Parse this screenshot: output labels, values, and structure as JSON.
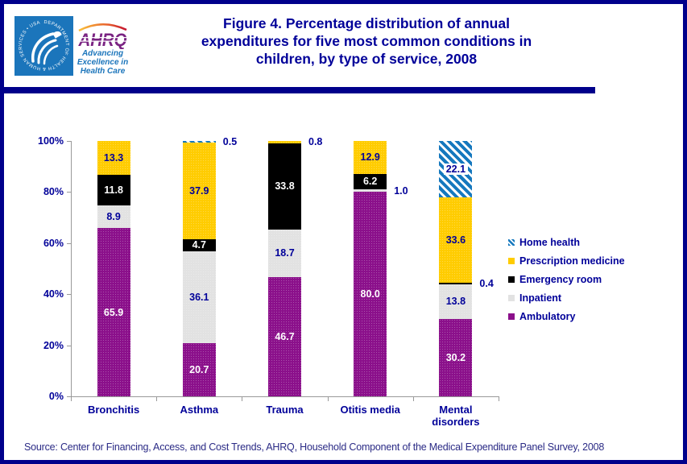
{
  "header": {
    "title_lines": [
      "Figure 4. Percentage distribution of annual",
      "expenditures for five most common conditions in",
      "children, by type of service, 2008"
    ]
  },
  "logo": {
    "hhs_circle_text": "DEPARTMENT OF HEALTH & HUMAN SERVICES • USA",
    "ahrq": "AHRQ",
    "tagline_lines": [
      "Advancing",
      "Excellence in",
      "Health Care"
    ]
  },
  "chart_data": {
    "type": "stacked-bar",
    "title": "Figure 4. Percentage distribution of annual expenditures for five most common conditions in children, by type of service, 2008",
    "categories": [
      "Bronchitis",
      "Asthma",
      "Trauma",
      "Otitis media",
      "Mental disorders"
    ],
    "series": [
      {
        "name": "Ambulatory",
        "color": "#8B108B",
        "label_color": "#FFFFFF",
        "values": [
          65.9,
          20.7,
          46.7,
          80.0,
          30.2
        ]
      },
      {
        "name": "Inpatient",
        "color": "#E2E2E2",
        "label_color": "#000099",
        "values": [
          8.9,
          36.1,
          18.7,
          1.0,
          13.8
        ]
      },
      {
        "name": "Emergency room",
        "color": "#000000",
        "label_color": "#FFFFFF",
        "values": [
          11.8,
          4.7,
          33.8,
          6.2,
          0.4
        ]
      },
      {
        "name": "Prescription medicine",
        "color": "#FFCC00",
        "label_color": "#000099",
        "values": [
          13.3,
          37.9,
          0.8,
          12.9,
          33.6
        ]
      },
      {
        "name": "Home health",
        "color": "hatch",
        "label_color": "#000099",
        "values": [
          0,
          0.5,
          0,
          0,
          22.1
        ]
      }
    ],
    "outside_labels": [
      [
        "Asthma",
        "Home health"
      ],
      [
        "Trauma",
        "Prescription medicine"
      ],
      [
        "Otitis media",
        "Inpatient"
      ],
      [
        "Mental disorders",
        "Emergency room"
      ]
    ],
    "ylim": [
      0,
      100
    ],
    "yticks": [
      "0%",
      "20%",
      "40%",
      "60%",
      "80%",
      "100%"
    ],
    "grid": false,
    "legend_position": "right",
    "hatch_color": "#1578BE",
    "outside_label_color": "#000099"
  },
  "legend": {
    "items": [
      {
        "label": "Home health",
        "swatch": "hatch"
      },
      {
        "label": "Prescription medicine",
        "swatch": "#FFCC00"
      },
      {
        "label": "Emergency room",
        "swatch": "#000000"
      },
      {
        "label": "Inpatient",
        "swatch": "#E2E2E2"
      },
      {
        "label": "Ambulatory",
        "swatch": "#8B108B"
      }
    ]
  },
  "footer": {
    "source": "Source: Center for Financing, Access, and Cost Trends, AHRQ, Household Component of the Medical Expenditure Panel Survey, 2008"
  },
  "colors": {
    "text_navy": "#000099",
    "border_navy": "#00008B",
    "axis_gray": "#999999",
    "hhs_blue": "#1B75BB",
    "ahrq_purple": "#7A2382"
  }
}
